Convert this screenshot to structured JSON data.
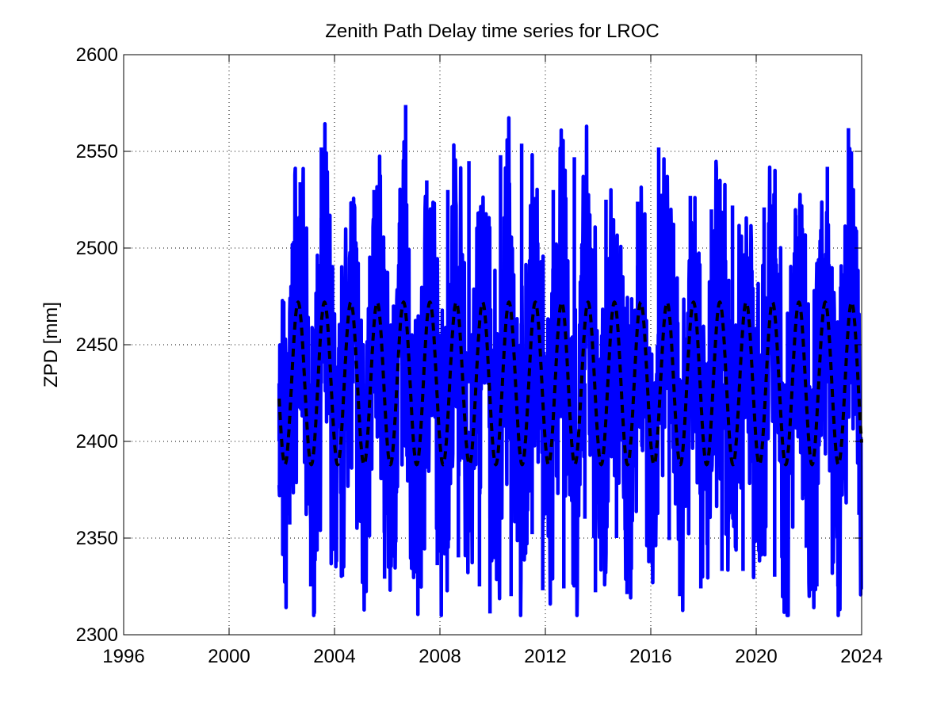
{
  "chart_data": {
    "type": "line",
    "title": "Zenith Path Delay time series for LROC",
    "xlabel": "",
    "ylabel": "ZPD [mm]",
    "xlim": [
      1996,
      2024
    ],
    "ylim": [
      2300,
      2600
    ],
    "xticks": [
      "1996",
      "2000",
      "2004",
      "2008",
      "2012",
      "2016",
      "2020",
      "2024"
    ],
    "yticks": [
      "2300",
      "2350",
      "2400",
      "2450",
      "2500",
      "2550",
      "2600"
    ],
    "grid": true,
    "series": [
      {
        "style": "solid",
        "color": "#0000ff",
        "x": [
          2001.9,
          2002.3,
          2002.7,
          2003.1,
          2003.5,
          2003.9,
          2004.3,
          2004.7,
          2005.1,
          2005.5,
          2005.9,
          2006.3,
          2006.7,
          2007.1,
          2007.5,
          2007.9,
          2008.3,
          2008.7,
          2009.1,
          2009.5,
          2009.9,
          2010.3,
          2010.7,
          2011.1,
          2011.5,
          2011.9,
          2012.3,
          2012.7,
          2013.1,
          2013.5,
          2013.9,
          2014.3,
          2014.7,
          2015.1,
          2015.5,
          2015.9,
          2016.3,
          2016.7,
          2017.1,
          2017.5,
          2017.9,
          2018.3,
          2018.7,
          2019.1,
          2019.5,
          2019.9,
          2020.3,
          2020.7,
          2021.1,
          2021.5,
          2021.9,
          2022.3,
          2022.7,
          2023.1,
          2023.5,
          2023.9
        ],
        "y": [
          2400,
          2357,
          2534,
          2325,
          2552,
          2354,
          2330,
          2519,
          2345,
          2530,
          2329,
          2375,
          2574,
          2365,
          2535,
          2336,
          2530,
          2340,
          2545,
          2325,
          2311,
          2548,
          2320,
          2554,
          2352,
          2323,
          2530,
          2324,
          2547,
          2360,
          2322,
          2525,
          2350,
          2321,
          2524,
          2350,
          2552,
          2349,
          2320,
          2527,
          2324,
          2520,
          2333,
          2522,
          2333,
          2330,
          2521,
          2330,
          2320,
          2517,
          2345,
          2325,
          2542,
          2325,
          2562,
          2362
        ]
      },
      {
        "style": "dashed",
        "color": "#000000",
        "mean": 2430,
        "amplitude": 42,
        "period_years": 1,
        "peak_phase_year": 2002.62
      }
    ]
  }
}
